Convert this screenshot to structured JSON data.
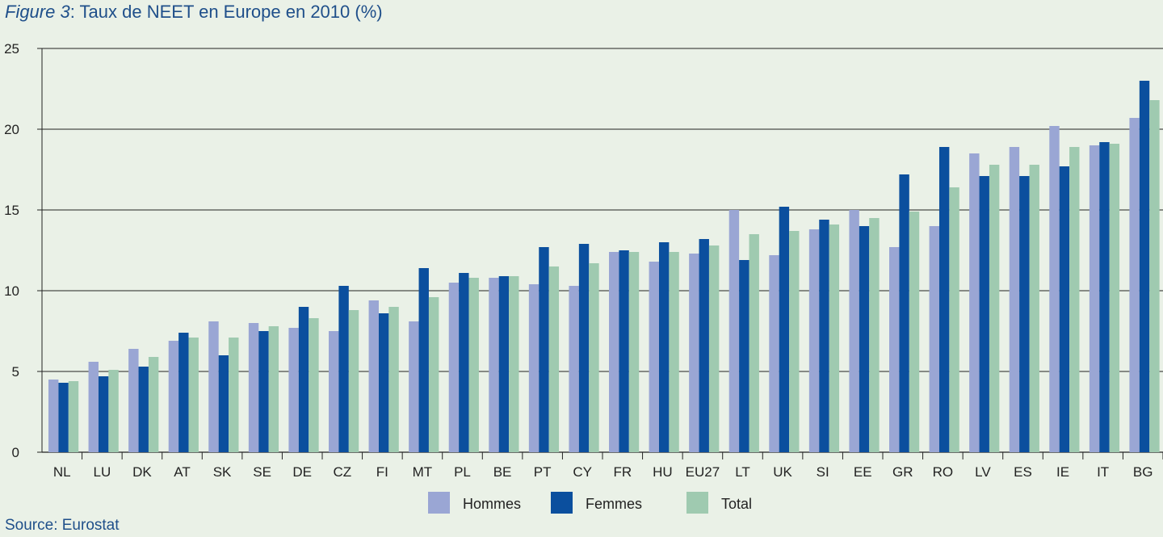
{
  "figure_label": "Figure 3",
  "title_text": ": Taux de NEET en Europe en 2010 (%)",
  "source": "Source: Eurostat",
  "chart_data": {
    "type": "bar",
    "title": "Figure 3: Taux de NEET en Europe en 2010 (%)",
    "xlabel": "",
    "ylabel": "",
    "ylim": [
      0,
      25
    ],
    "yticks": [
      0,
      5,
      10,
      15,
      20,
      25
    ],
    "grid": true,
    "legend_position": "bottom",
    "categories": [
      "NL",
      "LU",
      "DK",
      "AT",
      "SK",
      "SE",
      "DE",
      "CZ",
      "FI",
      "MT",
      "PL",
      "BE",
      "PT",
      "CY",
      "FR",
      "HU",
      "EU27",
      "LT",
      "UK",
      "SI",
      "EE",
      "GR",
      "RO",
      "LV",
      "ES",
      "IE",
      "IT",
      "BG"
    ],
    "series": [
      {
        "name": "Hommes",
        "color": "#9aa6d4",
        "values": [
          4.5,
          5.6,
          6.4,
          6.9,
          8.1,
          8.0,
          7.7,
          7.5,
          9.4,
          8.1,
          10.5,
          10.8,
          10.4,
          10.3,
          12.4,
          11.8,
          12.3,
          15.0,
          12.2,
          13.8,
          15.0,
          12.7,
          14.0,
          18.5,
          18.9,
          20.2,
          19.0,
          20.7
        ]
      },
      {
        "name": "Femmes",
        "color": "#0b4f9e",
        "values": [
          4.3,
          4.7,
          5.3,
          7.4,
          6.0,
          7.5,
          9.0,
          10.3,
          8.6,
          11.4,
          11.1,
          10.9,
          12.7,
          12.9,
          12.5,
          13.0,
          13.2,
          11.9,
          15.2,
          14.4,
          14.0,
          17.2,
          18.9,
          17.1,
          17.1,
          17.7,
          19.2,
          23.0
        ]
      },
      {
        "name": "Total",
        "color": "#9fcab0",
        "values": [
          4.4,
          5.1,
          5.9,
          7.1,
          7.1,
          7.8,
          8.3,
          8.8,
          9.0,
          9.6,
          10.8,
          10.9,
          11.5,
          11.7,
          12.4,
          12.4,
          12.8,
          13.5,
          13.7,
          14.1,
          14.5,
          14.9,
          16.4,
          17.8,
          17.8,
          18.9,
          19.1,
          21.8
        ]
      }
    ]
  }
}
